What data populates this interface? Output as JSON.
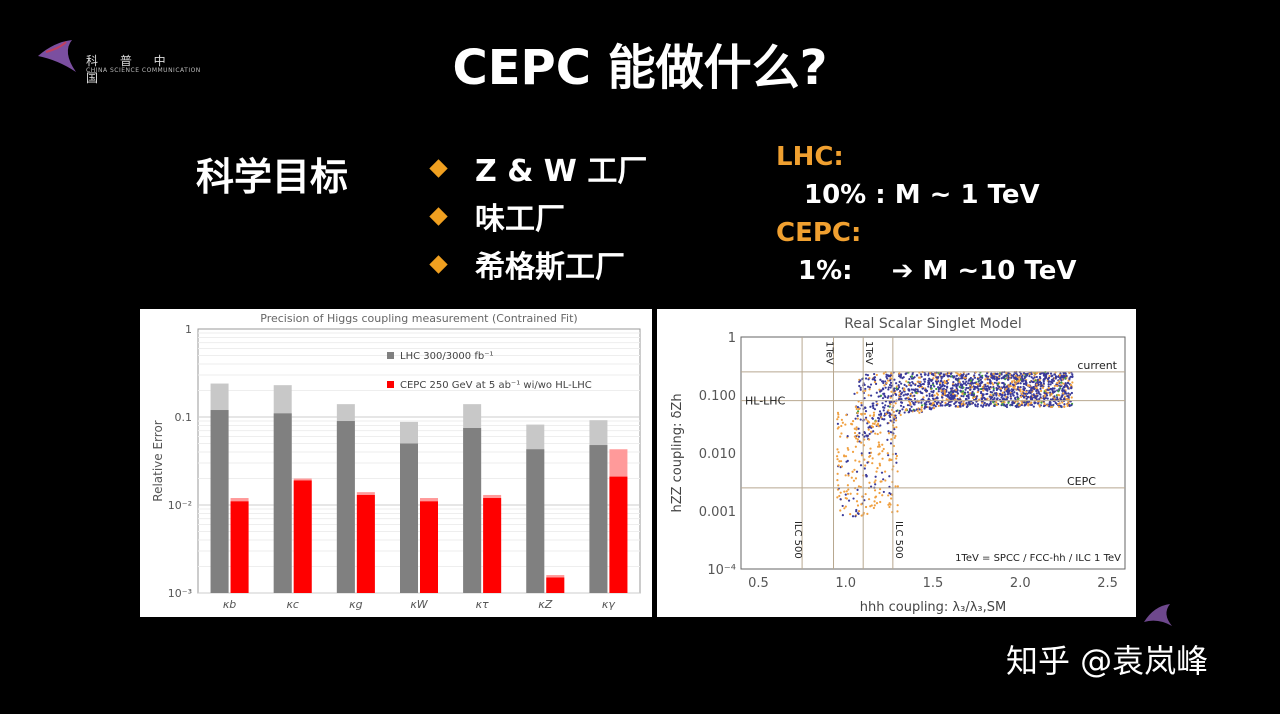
{
  "logo": {
    "text": "科 普 中 国",
    "subtitle": "CHINA SCIENCE COMMUNICATION"
  },
  "title": "CEPC 能做什么?",
  "goal_label": "科学目标",
  "bullets": [
    "Z & W 工厂",
    "味工厂",
    "希格斯工厂"
  ],
  "info": {
    "lhc_label": "LHC:",
    "lhc_line": "10% :  M ~ 1 TeV",
    "cepc_label": "CEPC:",
    "cepc_prefix": "1%:",
    "cepc_arrow": "➔",
    "cepc_value": "M ~10 TeV"
  },
  "watermark": "知乎 @袁岚峰",
  "colors": {
    "accent": "#f0a020",
    "lhc_bar": "#808080",
    "lhc_bar_light": "#c8c8c8",
    "cepc_bar": "#ff0000",
    "cepc_bar_light": "#ff9a9a"
  },
  "chart_data": [
    {
      "type": "bar",
      "title": "Precision of Higgs coupling measurement (Contrained Fit)",
      "ylabel": "Relative Error",
      "yscale": "log",
      "ylim": [
        0.001,
        1
      ],
      "yticks": [
        "1",
        "0.1",
        "10⁻²",
        "10⁻³"
      ],
      "categories": [
        "κb",
        "κc",
        "κg",
        "κW",
        "κτ",
        "κZ",
        "κγ"
      ],
      "legend": [
        "LHC 300/3000 fb⁻¹",
        "CEPC 250 GeV at 5 ab⁻¹ wi/wo HL-LHC"
      ],
      "series": [
        {
          "name": "LHC 300/3000 fb⁻¹",
          "values_300": [
            0.24,
            0.23,
            0.14,
            0.088,
            0.14,
            0.082,
            0.092
          ],
          "values_3000": [
            0.12,
            0.11,
            0.09,
            0.05,
            0.075,
            0.043,
            0.048
          ]
        },
        {
          "name": "CEPC 250 GeV at 5 ab⁻¹ wi/wo HL-LHC",
          "values_wo": [
            0.012,
            0.02,
            0.014,
            0.012,
            0.013,
            0.0016,
            0.043
          ],
          "values_wi": [
            0.011,
            0.019,
            0.013,
            0.011,
            0.012,
            0.0015,
            0.021
          ]
        }
      ]
    },
    {
      "type": "scatter",
      "title": "Real Scalar Singlet Model",
      "xlabel": "hhh coupling: λ₃/λ₃,SM",
      "ylabel": "hZZ coupling: δZh",
      "xlim": [
        0.4,
        2.6
      ],
      "ylim": [
        0.0001,
        1
      ],
      "yscale": "log",
      "xticks": [
        "0.5",
        "1.0",
        "1.5",
        "2.0",
        "2.5"
      ],
      "yticks": [
        "1",
        "0.100",
        "0.010",
        "0.001",
        "10⁻⁴"
      ],
      "hlines": [
        {
          "label": "current",
          "y": 0.25
        },
        {
          "label": "HL-LHC",
          "y": 0.08
        },
        {
          "label": "CEPC",
          "y": 0.0025
        }
      ],
      "vlines": [
        {
          "label": "1TeV",
          "x": 0.93
        },
        {
          "label": "1TeV",
          "x": 1.1
        },
        {
          "label": "ILC 500",
          "x": 0.75
        },
        {
          "label": "ILC 500",
          "x": 1.27
        }
      ],
      "annotation": "1TeV = SPCC / FCC-hh / ILC 1 TeV",
      "point_colors": [
        "#3a3a9a",
        "#f0a040",
        "#40a040"
      ]
    }
  ]
}
